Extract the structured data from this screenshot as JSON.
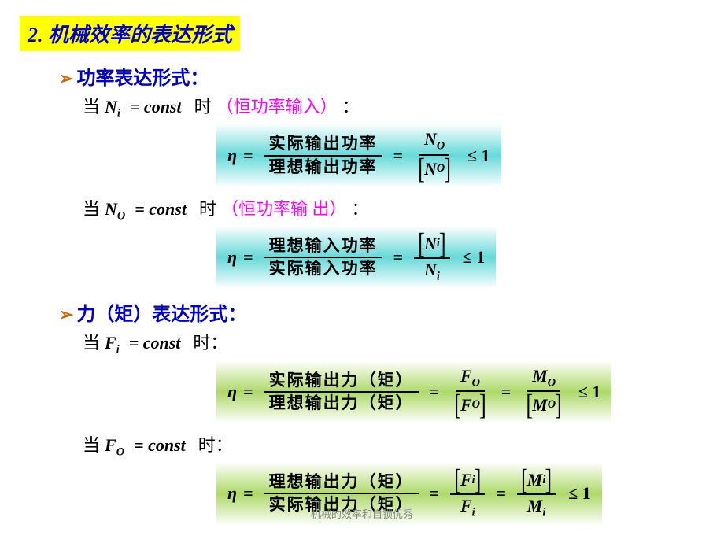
{
  "title": "2. 机械效率的表达形式",
  "colors": {
    "title_bg": "#ffff00",
    "title_fg": "#0000cc",
    "arrow": "#cc6600",
    "blue": "#0000cc",
    "magenta": "#ff00ff",
    "grad_cyan_mid": "#66d9d9",
    "grad_green_mid": "#aed968"
  },
  "sections": [
    {
      "heading": "功率表达形式：",
      "cases": [
        {
          "prefix": "当",
          "var": "N",
          "sub": "i",
          "rel": "= const",
          "suffix": "时",
          "paren": "（恒功率输入）",
          "colon": "：",
          "formula": {
            "bg": "cyan",
            "num_cn": "实际输出功率",
            "den_cn": "理想输出功率",
            "ratio_num": {
              "var": "N",
              "sub": "O",
              "bracket": false
            },
            "ratio_den": {
              "var": "N",
              "sub": "O",
              "bracket": true
            },
            "extra": null,
            "tail": "≤ 1"
          }
        },
        {
          "prefix": "当",
          "var": "N",
          "sub": "O",
          "rel": "= const",
          "suffix": "时",
          "paren": "（恒功率输 出）",
          "colon": "：",
          "formula": {
            "bg": "cyan",
            "num_cn": "理想输入功率",
            "den_cn": "实际输入功率",
            "ratio_num": {
              "var": "N",
              "sub": "i",
              "bracket": true
            },
            "ratio_den": {
              "var": "N",
              "sub": "i",
              "bracket": false
            },
            "extra": null,
            "tail": "≤ 1"
          }
        }
      ]
    },
    {
      "heading": "力（矩）表达形式：",
      "cases": [
        {
          "prefix": "当",
          "var": "F",
          "sub": "i",
          "rel": "= const",
          "suffix": "时：",
          "paren": null,
          "colon": "",
          "formula": {
            "bg": "green",
            "num_cn": "实际输出力（矩）",
            "den_cn": "理想输出力（矩）",
            "ratio_num": {
              "var": "F",
              "sub": "O",
              "bracket": false
            },
            "ratio_den": {
              "var": "F",
              "sub": "O",
              "bracket": true
            },
            "extra": {
              "num": {
                "var": "M",
                "sub": "O",
                "bracket": false
              },
              "den": {
                "var": "M",
                "sub": "O",
                "bracket": true
              }
            },
            "tail": "≤ 1"
          }
        },
        {
          "prefix": "当",
          "var": "F",
          "sub": "O",
          "rel": "= const",
          "suffix": "时：",
          "paren": null,
          "colon": "",
          "formula": {
            "bg": "green",
            "num_cn": "理想输出力（矩）",
            "den_cn": "实际输出力（矩）",
            "ratio_num": {
              "var": "F",
              "sub": "i",
              "bracket": true
            },
            "ratio_den": {
              "var": "F",
              "sub": "i",
              "bracket": false
            },
            "extra": {
              "num": {
                "var": "M",
                "sub": "i",
                "bracket": true
              },
              "den": {
                "var": "M",
                "sub": "i",
                "bracket": false
              }
            },
            "tail": "≤ 1"
          }
        }
      ]
    }
  ],
  "eta": "η",
  "eq": "=",
  "watermark": "机械的效率和自锁优秀"
}
